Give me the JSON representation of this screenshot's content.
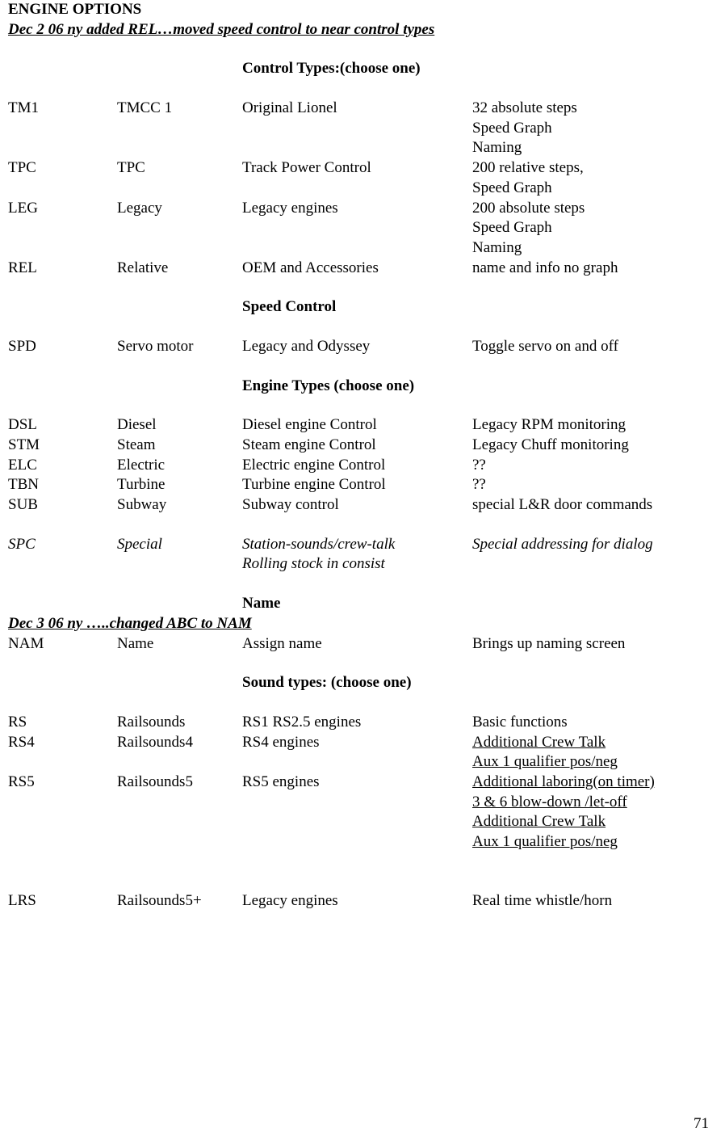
{
  "title": "ENGINE OPTIONS",
  "note1": "Dec 2 06 ny added REL…moved speed control to near control types",
  "section_control_types": "Control Types",
  "section_control_types_suffix": ":(choose one)",
  "control_types": [
    {
      "code": "TM1",
      "name": "TMCC 1",
      "desc": "Original Lionel",
      "notes": [
        "32 absolute steps",
        "Speed Graph",
        "Naming"
      ]
    },
    {
      "code": "TPC",
      "name": "TPC",
      "desc": "Track Power Control",
      "notes": [
        "200 relative steps,",
        "Speed Graph"
      ]
    },
    {
      "code": "LEG",
      "name": "Legacy",
      "desc": "Legacy engines",
      "notes": [
        "200 absolute steps",
        "Speed Graph",
        "Naming"
      ]
    },
    {
      "code": "REL",
      "name": "Relative",
      "desc": "OEM and Accessories",
      "notes": [
        "name and info no graph"
      ]
    }
  ],
  "section_speed_control": "Speed Control",
  "speed_control": [
    {
      "code": "SPD",
      "name": "Servo motor",
      "desc": "Legacy and Odyssey",
      "notes": [
        "Toggle servo on and off"
      ]
    }
  ],
  "section_engine_types": "Engine Types",
  "section_engine_types_suffix": " (choose one)",
  "engine_types": [
    {
      "code": "DSL",
      "name": "Diesel",
      "desc": "Diesel engine Control",
      "notes": [
        "Legacy RPM monitoring"
      ]
    },
    {
      "code": "STM",
      "name": "Steam",
      "desc": "Steam engine Control",
      "notes": [
        "Legacy Chuff monitoring"
      ]
    },
    {
      "code": "ELC",
      "name": "Electric",
      "desc": "Electric engine Control",
      "notes": [
        "??"
      ]
    },
    {
      "code": "TBN",
      "name": "Turbine",
      "desc": "Turbine engine Control",
      "notes": [
        "??"
      ]
    },
    {
      "code": "SUB",
      "name": "Subway",
      "desc": "Subway control",
      "notes": [
        "special L&R door commands"
      ]
    }
  ],
  "spc": {
    "code": "SPC",
    "name": "Special",
    "desc_lines": [
      "Station-sounds/crew-talk",
      "Rolling stock in consist"
    ],
    "notes": [
      "Special addressing for dialog"
    ]
  },
  "section_name": "Name",
  "note2": "Dec 3 06 ny …..changed ABC to NAM",
  "name_rows": [
    {
      "code": "NAM",
      "name": "Name",
      "desc": "Assign name",
      "notes": [
        "Brings up naming screen"
      ]
    }
  ],
  "section_sound_types": "Sound types:",
  "section_sound_types_suffix": " (choose one)",
  "sound_types": [
    {
      "code": "RS",
      "name": "Railsounds",
      "desc": "RS1 RS2.5 engines",
      "notes": [
        "Basic functions"
      ],
      "notes_underline": [
        false
      ]
    },
    {
      "code": "RS4",
      "name": "Railsounds4",
      "desc": "RS4 engines",
      "notes": [
        "Additional Crew Talk",
        "Aux 1 qualifier pos/neg"
      ],
      "notes_underline": [
        true,
        true
      ]
    },
    {
      "code": "RS5",
      "name": "Railsounds5",
      "desc": "RS5 engines",
      "notes": [
        "Additional laboring(on timer)",
        "3 & 6 blow-down /let-off",
        "Additional Crew Talk",
        "Aux 1 qualifier pos/neg"
      ],
      "notes_underline": [
        true,
        true,
        true,
        true
      ]
    }
  ],
  "lrs": {
    "code": "LRS",
    "name": "Railsounds5+",
    "desc": "Legacy engines",
    "notes": [
      "Real time whistle/horn"
    ]
  },
  "page_number": "71"
}
